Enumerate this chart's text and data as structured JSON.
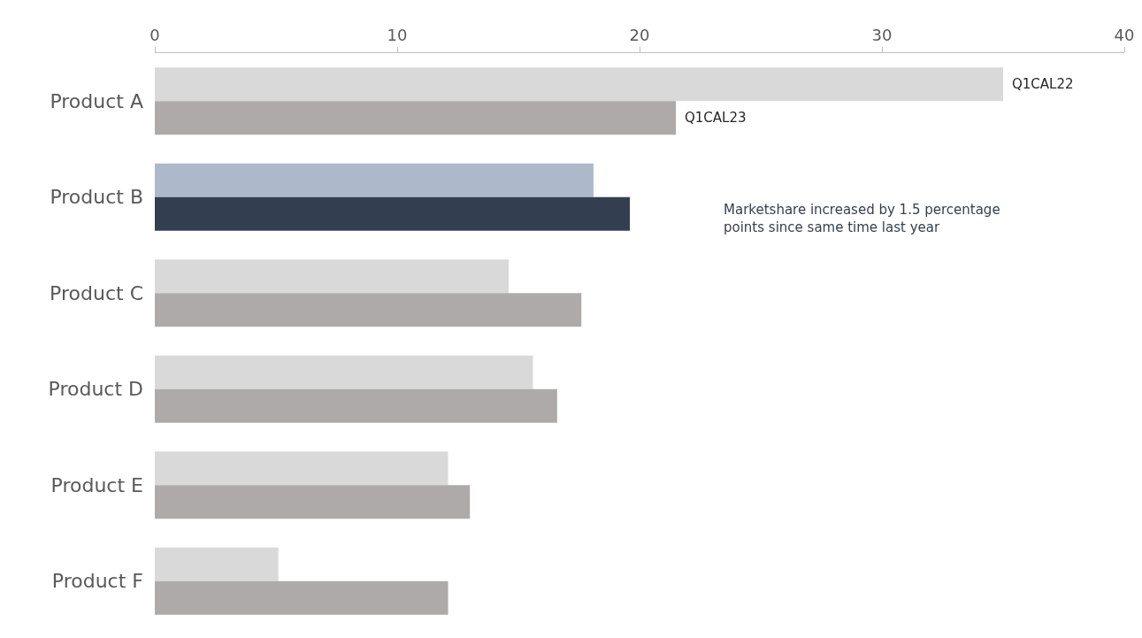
{
  "chart_data": {
    "type": "bar",
    "orientation": "horizontal",
    "categories": [
      "Product A",
      "Product B",
      "Product C",
      "Product D",
      "Product E",
      "Product F"
    ],
    "series": [
      {
        "name": "Q1CAL22",
        "colors": [
          "#d9d9d9",
          "#adb9ca",
          "#d9d9d9",
          "#d9d9d9",
          "#d9d9d9",
          "#d9d9d9"
        ],
        "values": [
          35.0,
          18.1,
          14.6,
          15.6,
          12.1,
          5.1
        ]
      },
      {
        "name": "Q1CAL23",
        "colors": [
          "#aeaaaa",
          "#333f50",
          "#aeaaaa",
          "#aeaaaa",
          "#aeaaaa",
          "#aeaaaa"
        ],
        "values": [
          21.5,
          19.6,
          17.6,
          16.6,
          13.0,
          12.1
        ]
      }
    ],
    "xlim": [
      0,
      40
    ],
    "xticks": [
      0,
      10,
      20,
      30,
      40
    ],
    "legend": false,
    "annotations": [
      "Marketshare increased by 1.5 percentage points since same time last year"
    ]
  }
}
